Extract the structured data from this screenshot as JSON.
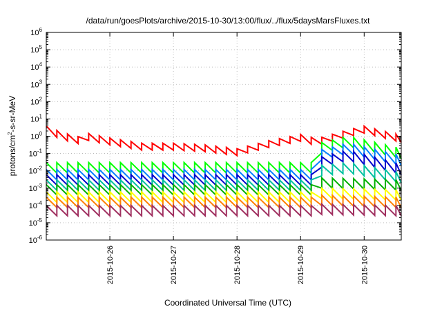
{
  "chart_data": {
    "type": "line",
    "title": "/data/run/goesPlots/archive/2015-10-30/13:00/flux/../flux/5daysMarsFluxes.txt",
    "xlabel": "Coordinated Universal Time (UTC)",
    "ylabel": {
      "base": "protons/cm",
      "sup": "2",
      "rest": "-s-sr-MeV"
    },
    "yscale": "log",
    "ylim_exp": [
      -6,
      6
    ],
    "y_tick_base": "10",
    "y_tick_exponents": [
      "-6",
      "-5",
      "-4",
      "-3",
      "-2",
      "-1",
      "0",
      "1",
      "2",
      "3",
      "4",
      "5",
      "6"
    ],
    "xlim": [
      "2015-10-25T00:00",
      "2015-10-30T14:00"
    ],
    "x_ticks": [
      "2015-10-26",
      "2015-10-27",
      "2015-10-28",
      "2015-10-29",
      "2015-10-30"
    ],
    "grid": true,
    "series": [
      {
        "color": "#ff0000",
        "points": [
          [
            "2015-10-25T00:00",
            2.5
          ],
          [
            "2015-10-25T06:00",
            1.0
          ],
          [
            "2015-10-25T12:00",
            0.6
          ],
          [
            "2015-10-25T16:00",
            0.9
          ],
          [
            "2015-10-26T00:00",
            0.5
          ],
          [
            "2015-10-26T12:00",
            0.25
          ],
          [
            "2015-10-27T00:00",
            0.25
          ],
          [
            "2015-10-27T12:00",
            0.2
          ],
          [
            "2015-10-28T00:00",
            0.12
          ],
          [
            "2015-10-28T12:00",
            0.35
          ],
          [
            "2015-10-29T00:00",
            0.8
          ],
          [
            "2015-10-29T06:00",
            0.45
          ],
          [
            "2015-10-29T18:00",
            1.5
          ],
          [
            "2015-10-30T00:00",
            2.4
          ],
          [
            "2015-10-30T14:00",
            0.7
          ]
        ]
      },
      {
        "color": "#00ff00",
        "points": [
          [
            "2015-10-25T00:00",
            0.015
          ],
          [
            "2015-10-29T06:00",
            0.015
          ],
          [
            "2015-10-29T07:00",
            0.2
          ],
          [
            "2015-10-29T18:00",
            0.5
          ],
          [
            "2015-10-30T14:00",
            0.1
          ]
        ]
      },
      {
        "color": "#0080ff",
        "points": [
          [
            "2015-10-25T00:00",
            0.006
          ],
          [
            "2015-10-29T06:00",
            0.006
          ],
          [
            "2015-10-29T07:00",
            0.08
          ],
          [
            "2015-10-29T18:00",
            0.2
          ],
          [
            "2015-10-30T14:00",
            0.04
          ]
        ]
      },
      {
        "color": "#0000cc",
        "points": [
          [
            "2015-10-25T00:00",
            0.003
          ],
          [
            "2015-10-29T06:00",
            0.003
          ],
          [
            "2015-10-29T07:00",
            0.03
          ],
          [
            "2015-10-29T18:00",
            0.08
          ],
          [
            "2015-10-30T14:00",
            0.012
          ]
        ]
      },
      {
        "color": "#00c0a0",
        "points": [
          [
            "2015-10-25T00:00",
            0.0015
          ],
          [
            "2015-10-29T06:00",
            0.0015
          ],
          [
            "2015-10-29T07:00",
            0.01
          ],
          [
            "2015-10-29T18:00",
            0.015
          ],
          [
            "2015-10-30T14:00",
            0.004
          ]
        ]
      },
      {
        "color": "#00b000",
        "points": [
          [
            "2015-10-25T00:00",
            0.0008
          ],
          [
            "2015-10-29T06:00",
            0.0008
          ],
          [
            "2015-10-29T07:00",
            0.002
          ],
          [
            "2015-10-30T14:00",
            0.0015
          ]
        ]
      },
      {
        "color": "#ffff00",
        "points": [
          [
            "2015-10-25T00:00",
            0.0003
          ],
          [
            "2015-10-29T06:00",
            0.0003
          ],
          [
            "2015-10-29T07:00",
            0.0005
          ],
          [
            "2015-10-30T14:00",
            0.0004
          ]
        ]
      },
      {
        "color": "#ff8000",
        "points": [
          [
            "2015-10-25T00:00",
            0.00015
          ],
          [
            "2015-10-29T06:00",
            0.00015
          ],
          [
            "2015-10-29T07:00",
            0.0002
          ],
          [
            "2015-10-30T14:00",
            0.00015
          ]
        ]
      },
      {
        "color": "#a03060",
        "points": [
          [
            "2015-10-25T00:00",
            5e-05
          ],
          [
            "2015-10-29T06:00",
            5e-05
          ],
          [
            "2015-10-29T07:00",
            6e-05
          ],
          [
            "2015-10-30T14:00",
            5e-05
          ]
        ]
      }
    ]
  }
}
